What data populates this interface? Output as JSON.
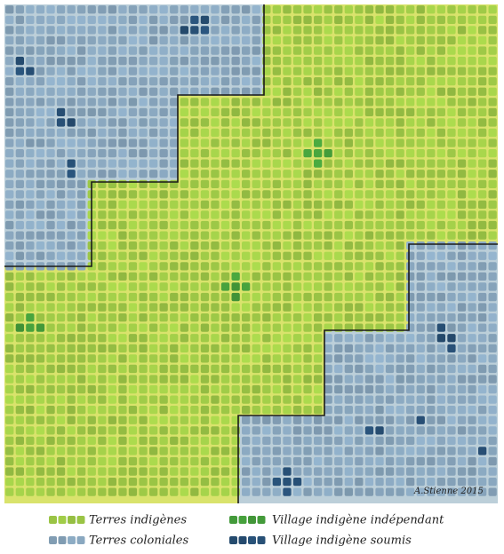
{
  "legend": [
    {
      "label": "Terres indigènes"
    },
    {
      "label": "Terres coloniales"
    },
    {
      "label": "Village indigène indépendant"
    },
    {
      "label": "Village indigène soumis"
    }
  ],
  "signature": "A.Stienne 2015"
}
